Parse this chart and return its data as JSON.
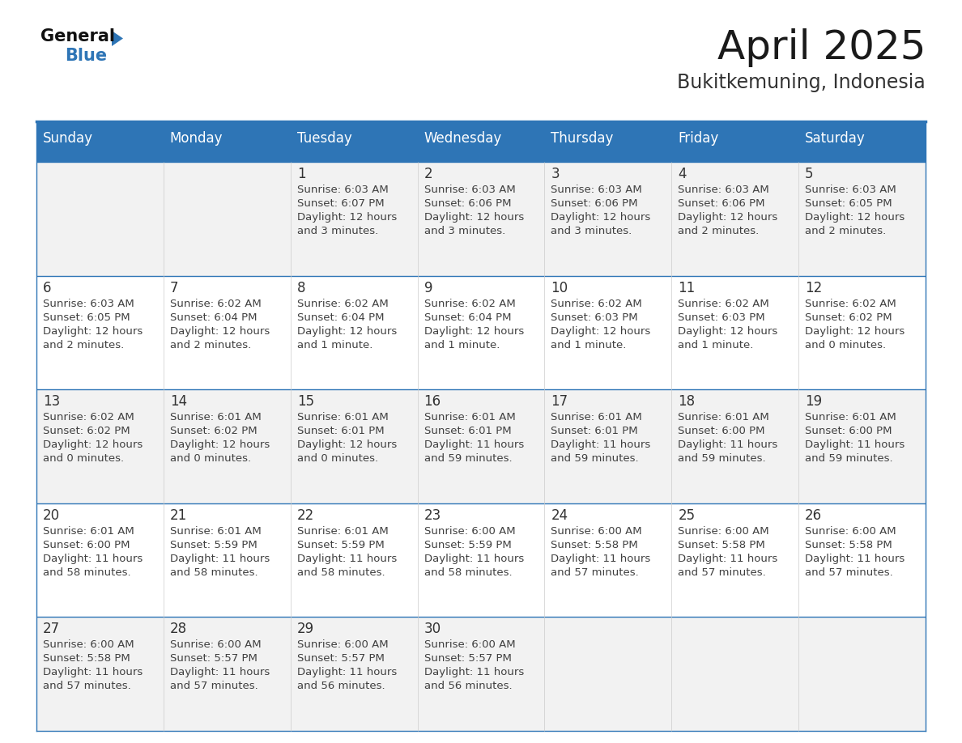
{
  "title": "April 2025",
  "subtitle": "Bukitkemuning, Indonesia",
  "header_bg": "#2E75B6",
  "header_text_color": "#FFFFFF",
  "days_of_week": [
    "Sunday",
    "Monday",
    "Tuesday",
    "Wednesday",
    "Thursday",
    "Friday",
    "Saturday"
  ],
  "row_bg_alt": "#F2F2F2",
  "row_bg_main": "#FFFFFF",
  "cell_text_color": "#404040",
  "day_num_color": "#333333",
  "border_color": "#2E75B6",
  "title_color": "#1a1a1a",
  "subtitle_color": "#333333",
  "logo_black": "#1a1a1a",
  "logo_blue": "#2E75B6",
  "calendar_data": [
    [
      {
        "day": "",
        "sunrise": "",
        "sunset": "",
        "daylight": ""
      },
      {
        "day": "",
        "sunrise": "",
        "sunset": "",
        "daylight": ""
      },
      {
        "day": "1",
        "sunrise": "6:03 AM",
        "sunset": "6:07 PM",
        "daylight": "12 hours\nand 3 minutes."
      },
      {
        "day": "2",
        "sunrise": "6:03 AM",
        "sunset": "6:06 PM",
        "daylight": "12 hours\nand 3 minutes."
      },
      {
        "day": "3",
        "sunrise": "6:03 AM",
        "sunset": "6:06 PM",
        "daylight": "12 hours\nand 3 minutes."
      },
      {
        "day": "4",
        "sunrise": "6:03 AM",
        "sunset": "6:06 PM",
        "daylight": "12 hours\nand 2 minutes."
      },
      {
        "day": "5",
        "sunrise": "6:03 AM",
        "sunset": "6:05 PM",
        "daylight": "12 hours\nand 2 minutes."
      }
    ],
    [
      {
        "day": "6",
        "sunrise": "6:03 AM",
        "sunset": "6:05 PM",
        "daylight": "12 hours\nand 2 minutes."
      },
      {
        "day": "7",
        "sunrise": "6:02 AM",
        "sunset": "6:04 PM",
        "daylight": "12 hours\nand 2 minutes."
      },
      {
        "day": "8",
        "sunrise": "6:02 AM",
        "sunset": "6:04 PM",
        "daylight": "12 hours\nand 1 minute."
      },
      {
        "day": "9",
        "sunrise": "6:02 AM",
        "sunset": "6:04 PM",
        "daylight": "12 hours\nand 1 minute."
      },
      {
        "day": "10",
        "sunrise": "6:02 AM",
        "sunset": "6:03 PM",
        "daylight": "12 hours\nand 1 minute."
      },
      {
        "day": "11",
        "sunrise": "6:02 AM",
        "sunset": "6:03 PM",
        "daylight": "12 hours\nand 1 minute."
      },
      {
        "day": "12",
        "sunrise": "6:02 AM",
        "sunset": "6:02 PM",
        "daylight": "12 hours\nand 0 minutes."
      }
    ],
    [
      {
        "day": "13",
        "sunrise": "6:02 AM",
        "sunset": "6:02 PM",
        "daylight": "12 hours\nand 0 minutes."
      },
      {
        "day": "14",
        "sunrise": "6:01 AM",
        "sunset": "6:02 PM",
        "daylight": "12 hours\nand 0 minutes."
      },
      {
        "day": "15",
        "sunrise": "6:01 AM",
        "sunset": "6:01 PM",
        "daylight": "12 hours\nand 0 minutes."
      },
      {
        "day": "16",
        "sunrise": "6:01 AM",
        "sunset": "6:01 PM",
        "daylight": "11 hours\nand 59 minutes."
      },
      {
        "day": "17",
        "sunrise": "6:01 AM",
        "sunset": "6:01 PM",
        "daylight": "11 hours\nand 59 minutes."
      },
      {
        "day": "18",
        "sunrise": "6:01 AM",
        "sunset": "6:00 PM",
        "daylight": "11 hours\nand 59 minutes."
      },
      {
        "day": "19",
        "sunrise": "6:01 AM",
        "sunset": "6:00 PM",
        "daylight": "11 hours\nand 59 minutes."
      }
    ],
    [
      {
        "day": "20",
        "sunrise": "6:01 AM",
        "sunset": "6:00 PM",
        "daylight": "11 hours\nand 58 minutes."
      },
      {
        "day": "21",
        "sunrise": "6:01 AM",
        "sunset": "5:59 PM",
        "daylight": "11 hours\nand 58 minutes."
      },
      {
        "day": "22",
        "sunrise": "6:01 AM",
        "sunset": "5:59 PM",
        "daylight": "11 hours\nand 58 minutes."
      },
      {
        "day": "23",
        "sunrise": "6:00 AM",
        "sunset": "5:59 PM",
        "daylight": "11 hours\nand 58 minutes."
      },
      {
        "day": "24",
        "sunrise": "6:00 AM",
        "sunset": "5:58 PM",
        "daylight": "11 hours\nand 57 minutes."
      },
      {
        "day": "25",
        "sunrise": "6:00 AM",
        "sunset": "5:58 PM",
        "daylight": "11 hours\nand 57 minutes."
      },
      {
        "day": "26",
        "sunrise": "6:00 AM",
        "sunset": "5:58 PM",
        "daylight": "11 hours\nand 57 minutes."
      }
    ],
    [
      {
        "day": "27",
        "sunrise": "6:00 AM",
        "sunset": "5:58 PM",
        "daylight": "11 hours\nand 57 minutes."
      },
      {
        "day": "28",
        "sunrise": "6:00 AM",
        "sunset": "5:57 PM",
        "daylight": "11 hours\nand 57 minutes."
      },
      {
        "day": "29",
        "sunrise": "6:00 AM",
        "sunset": "5:57 PM",
        "daylight": "11 hours\nand 56 minutes."
      },
      {
        "day": "30",
        "sunrise": "6:00 AM",
        "sunset": "5:57 PM",
        "daylight": "11 hours\nand 56 minutes."
      },
      {
        "day": "",
        "sunrise": "",
        "sunset": "",
        "daylight": ""
      },
      {
        "day": "",
        "sunrise": "",
        "sunset": "",
        "daylight": ""
      },
      {
        "day": "",
        "sunrise": "",
        "sunset": "",
        "daylight": ""
      }
    ]
  ]
}
